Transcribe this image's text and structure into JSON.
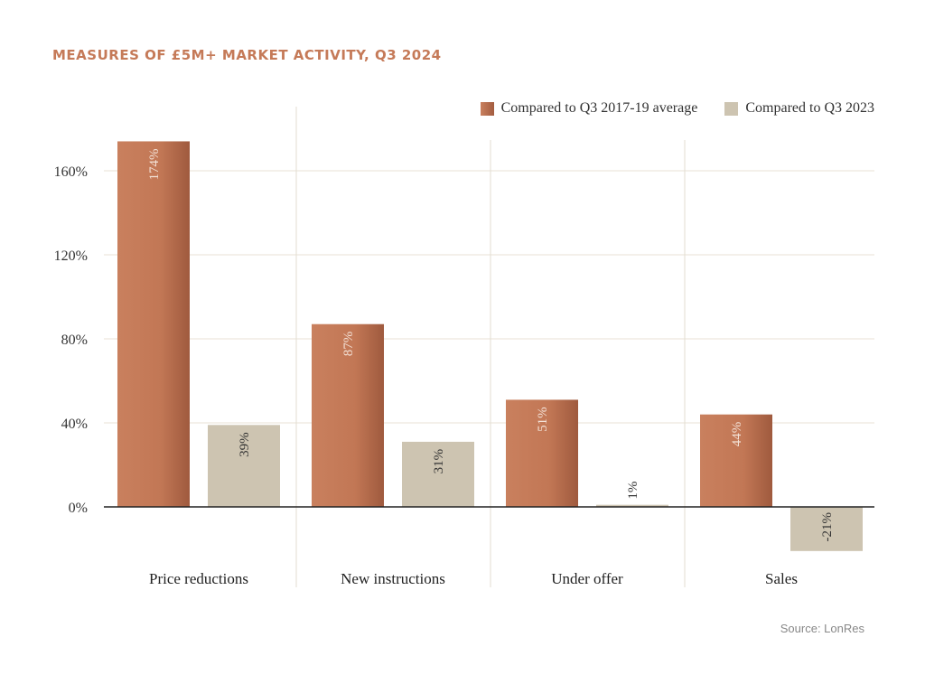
{
  "chart_data": {
    "type": "bar",
    "title": "MEASURES OF £5M+ MARKET ACTIVITY, Q3 2024",
    "categories": [
      "Price reductions",
      "New instructions",
      "Under offer",
      "Sales"
    ],
    "series": [
      {
        "name": "Compared to Q3 2017-19 average",
        "values": [
          174,
          87,
          51,
          44
        ],
        "labels": [
          "174%",
          "87%",
          "51%",
          "44%"
        ],
        "color": "#c57a58"
      },
      {
        "name": "Compared to Q3 2023",
        "values": [
          39,
          31,
          1,
          -21
        ],
        "labels": [
          "39%",
          "31%",
          "1%",
          "-21%"
        ],
        "color": "#cdc4b1"
      }
    ],
    "yticks": [
      0,
      40,
      80,
      120,
      160
    ],
    "ytick_labels": [
      "0%",
      "40%",
      "80%",
      "120%",
      "160%"
    ],
    "ylim": [
      -25,
      192
    ],
    "legend": "top-right",
    "grid": true,
    "source": "Source: LonRes"
  }
}
